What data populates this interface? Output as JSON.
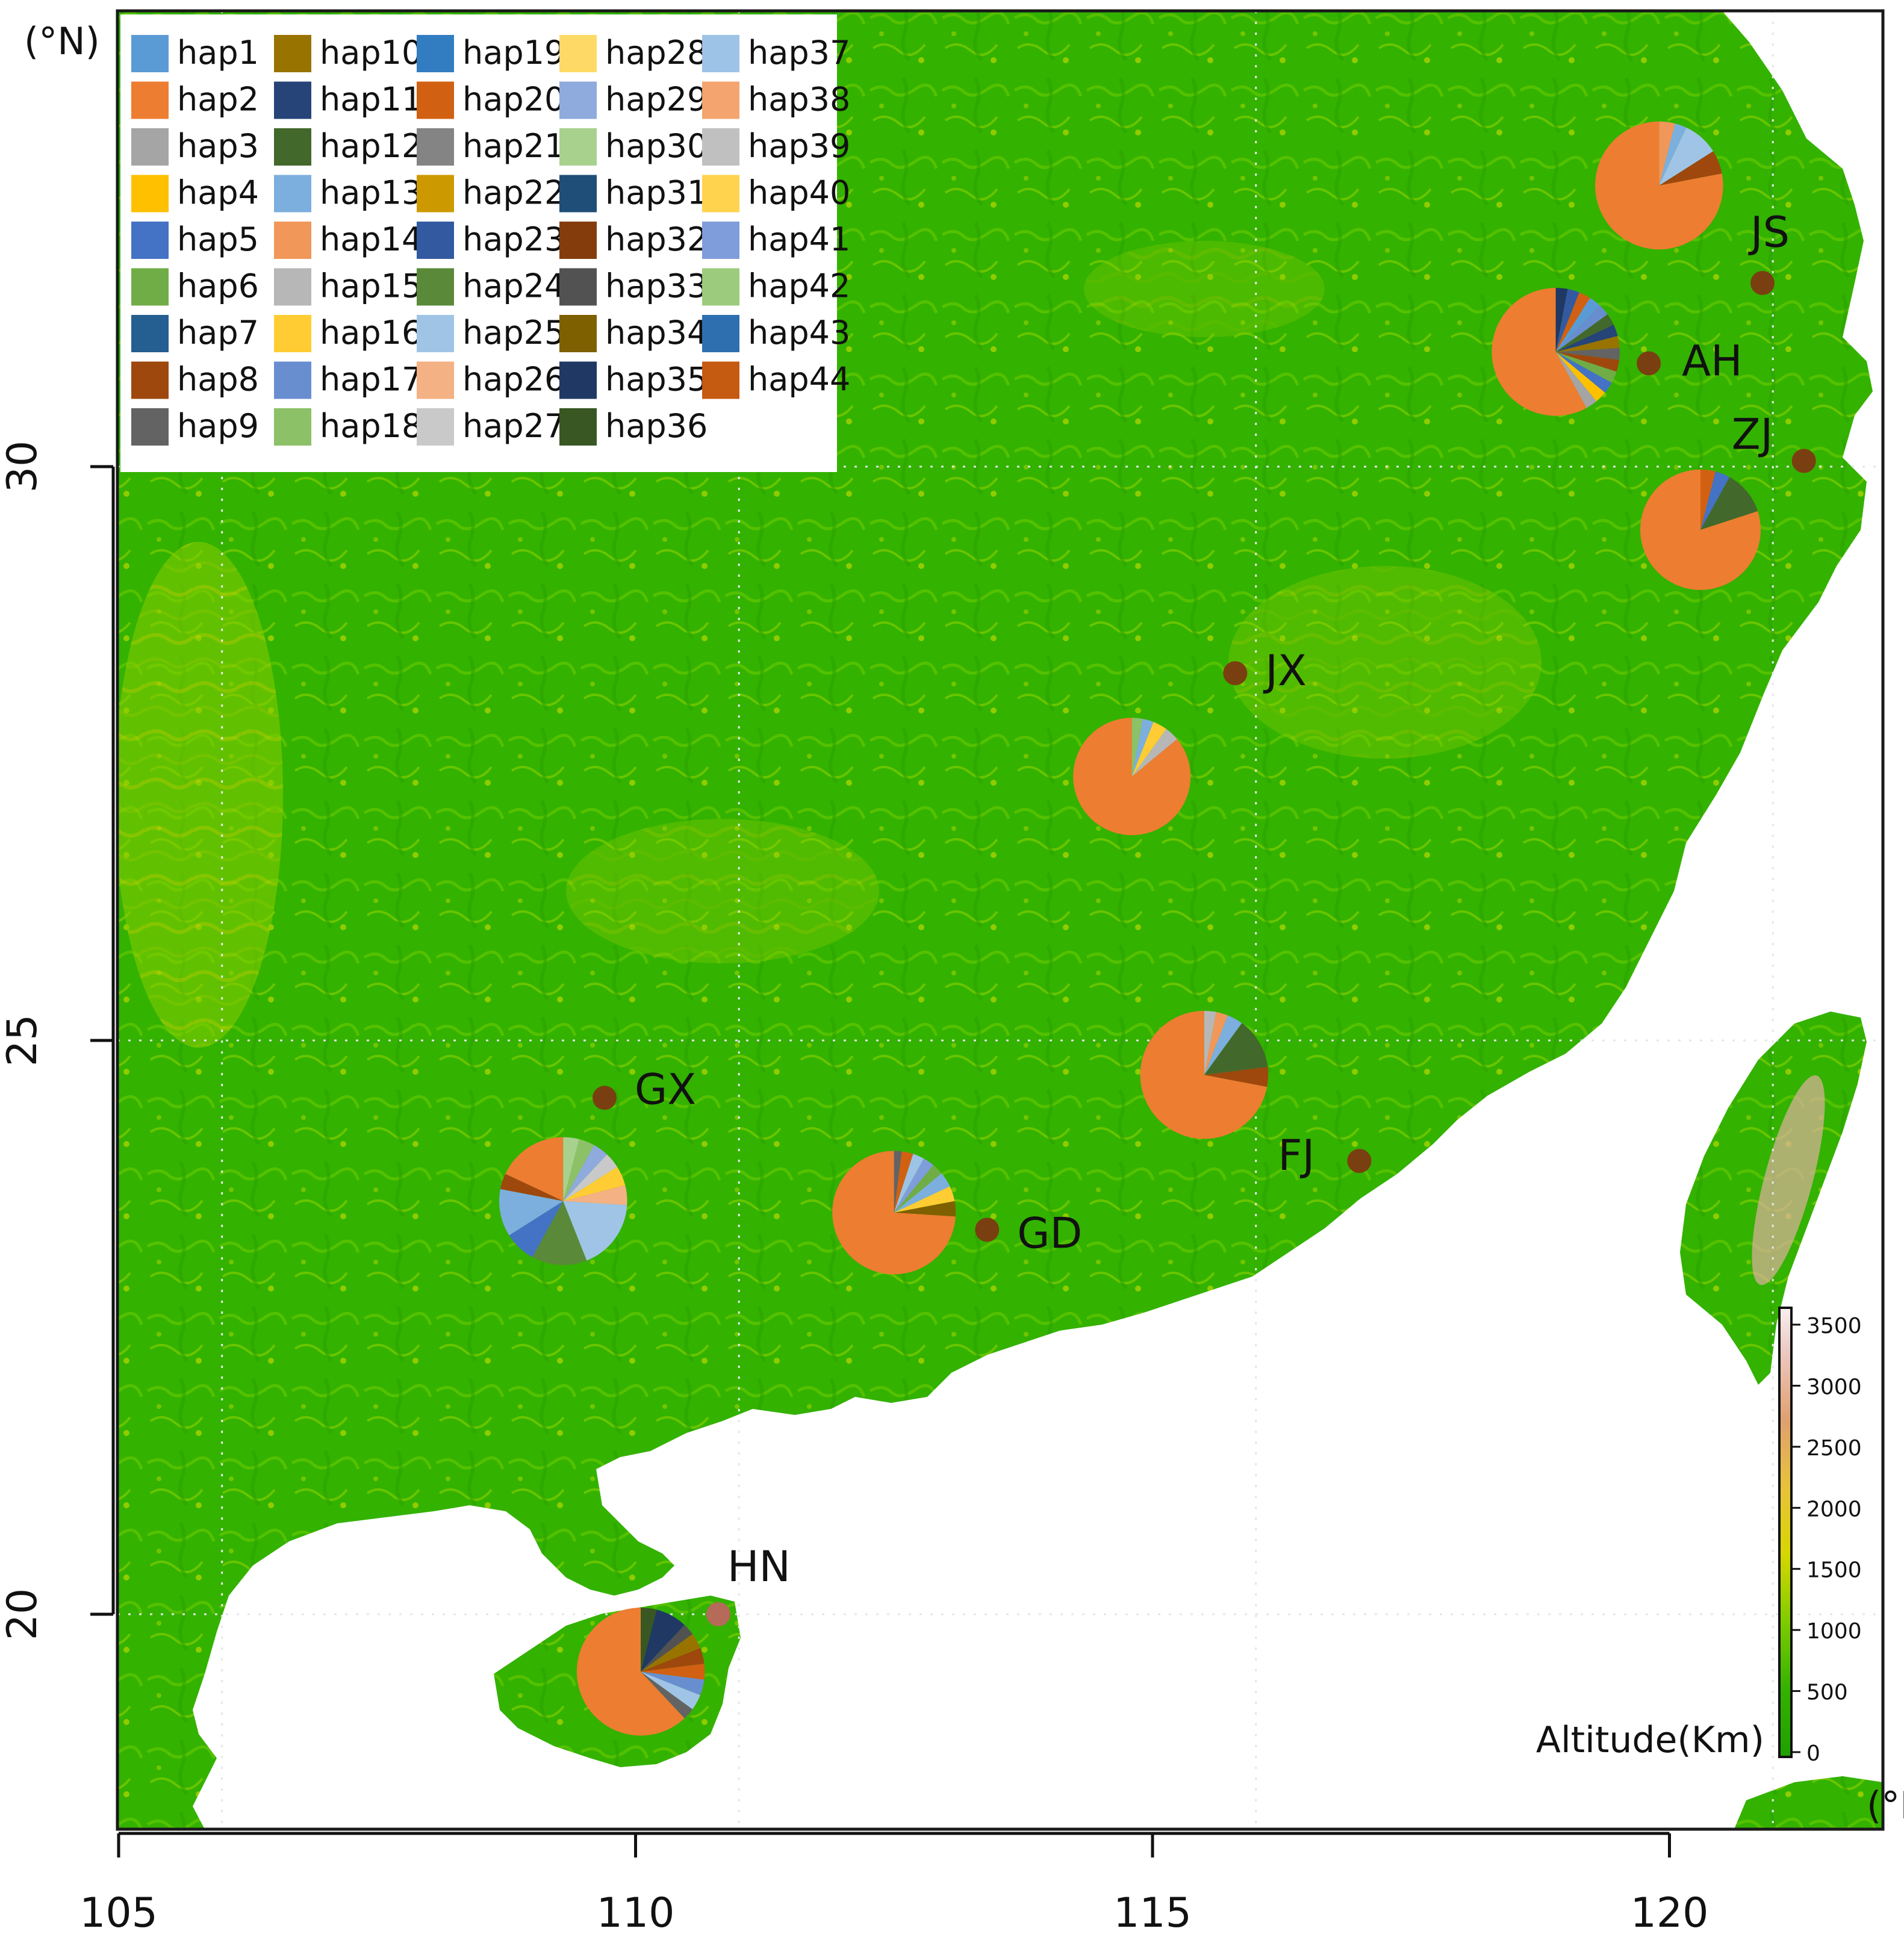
{
  "axes": {
    "x_unit": "(°E)",
    "y_unit": "(°N)",
    "x_ticks": [
      "105",
      "110",
      "115",
      "120"
    ],
    "y_ticks": [
      "30",
      "25",
      "20"
    ]
  },
  "legend": {
    "items": [
      {
        "label": "hap1",
        "color": "#5b9bd5"
      },
      {
        "label": "hap2",
        "color": "#ed7d31"
      },
      {
        "label": "hap3",
        "color": "#a5a5a5"
      },
      {
        "label": "hap4",
        "color": "#ffc000"
      },
      {
        "label": "hap5",
        "color": "#4472c4"
      },
      {
        "label": "hap6",
        "color": "#70ad47"
      },
      {
        "label": "hap7",
        "color": "#255e91"
      },
      {
        "label": "hap8",
        "color": "#9e480e"
      },
      {
        "label": "hap9",
        "color": "#636363"
      },
      {
        "label": "hap10",
        "color": "#997300"
      },
      {
        "label": "hap11",
        "color": "#264478"
      },
      {
        "label": "hap12",
        "color": "#43682b"
      },
      {
        "label": "hap13",
        "color": "#7cafdd"
      },
      {
        "label": "hap14",
        "color": "#f1975a"
      },
      {
        "label": "hap15",
        "color": "#b7b7b7"
      },
      {
        "label": "hap16",
        "color": "#ffcd33"
      },
      {
        "label": "hap17",
        "color": "#698ed0"
      },
      {
        "label": "hap18",
        "color": "#8cc168"
      },
      {
        "label": "hap19",
        "color": "#327dc2"
      },
      {
        "label": "hap20",
        "color": "#d26012"
      },
      {
        "label": "hap21",
        "color": "#848484"
      },
      {
        "label": "hap22",
        "color": "#cc9a00"
      },
      {
        "label": "hap23",
        "color": "#335aa1"
      },
      {
        "label": "hap24",
        "color": "#5a8a39"
      },
      {
        "label": "hap25",
        "color": "#a0c4e6"
      },
      {
        "label": "hap26",
        "color": "#f4b183"
      },
      {
        "label": "hap27",
        "color": "#c9c9c9"
      },
      {
        "label": "hap28",
        "color": "#ffd966"
      },
      {
        "label": "hap29",
        "color": "#8faadc"
      },
      {
        "label": "hap30",
        "color": "#a9d18e"
      },
      {
        "label": "hap31",
        "color": "#1f4e79"
      },
      {
        "label": "hap32",
        "color": "#843c0c"
      },
      {
        "label": "hap33",
        "color": "#525252"
      },
      {
        "label": "hap34",
        "color": "#7f6000"
      },
      {
        "label": "hap35",
        "color": "#203864"
      },
      {
        "label": "hap36",
        "color": "#385723"
      },
      {
        "label": "hap37",
        "color": "#9dc3e6"
      },
      {
        "label": "hap38",
        "color": "#f4a46e"
      },
      {
        "label": "hap39",
        "color": "#c0c0c0"
      },
      {
        "label": "hap40",
        "color": "#ffd34d"
      },
      {
        "label": "hap41",
        "color": "#7f9ddb"
      },
      {
        "label": "hap42",
        "color": "#9ccb7d"
      },
      {
        "label": "hap43",
        "color": "#2e6fb0"
      },
      {
        "label": "hap44",
        "color": "#c55a11"
      }
    ]
  },
  "sites": [
    {
      "id": "JS",
      "label": "JS",
      "lon": 120.9,
      "lat": 31.6,
      "dot_color": "#7a3f10"
    },
    {
      "id": "AH",
      "label": "AH",
      "lon": 119.8,
      "lat": 30.9,
      "dot_color": "#7a3f10"
    },
    {
      "id": "ZJ",
      "label": "ZJ",
      "lon": 121.3,
      "lat": 30.05,
      "dot_color": "#7a3f10"
    },
    {
      "id": "JX",
      "label": "JX",
      "lon": 115.8,
      "lat": 28.2,
      "dot_color": "#7a3f10"
    },
    {
      "id": "GX",
      "label": "GX",
      "lon": 109.7,
      "lat": 24.5,
      "dot_color": "#7a3f10"
    },
    {
      "id": "FJ",
      "label": "FJ",
      "lon": 117.0,
      "lat": 23.95,
      "dot_color": "#7a3f10"
    },
    {
      "id": "GD",
      "label": "GD",
      "lon": 113.4,
      "lat": 23.35,
      "dot_color": "#7a3f10"
    },
    {
      "id": "HN",
      "label": "HN",
      "lon": 110.8,
      "lat": 20.0,
      "dot_color": "#b56a5a"
    }
  ],
  "pies": [
    {
      "site": "JS",
      "lon": 119.9,
      "lat": 32.45,
      "radius_scale": 0.85,
      "slices": [
        {
          "hap": "hap2",
          "value": 78
        },
        {
          "hap": "hap8",
          "value": 6
        },
        {
          "hap": "hap25",
          "value": 9
        },
        {
          "hap": "hap13",
          "value": 3
        },
        {
          "hap": "hap14",
          "value": 4
        }
      ]
    },
    {
      "site": "AH",
      "lon": 118.9,
      "lat": 31.0,
      "radius_scale": 0.85,
      "slices": [
        {
          "hap": "hap2",
          "value": 58
        },
        {
          "hap": "hap3",
          "value": 3
        },
        {
          "hap": "hap4",
          "value": 3
        },
        {
          "hap": "hap5",
          "value": 3
        },
        {
          "hap": "hap6",
          "value": 3
        },
        {
          "hap": "hap8",
          "value": 3
        },
        {
          "hap": "hap9",
          "value": 3
        },
        {
          "hap": "hap10",
          "value": 3
        },
        {
          "hap": "hap11",
          "value": 3
        },
        {
          "hap": "hap12",
          "value": 3
        },
        {
          "hap": "hap17",
          "value": 3
        },
        {
          "hap": "hap1",
          "value": 3
        },
        {
          "hap": "hap20",
          "value": 3
        },
        {
          "hap": "hap23",
          "value": 3
        },
        {
          "hap": "hap35",
          "value": 3
        }
      ]
    },
    {
      "site": "ZJ",
      "lon": 120.3,
      "lat": 29.45,
      "radius_scale": 0.8,
      "slices": [
        {
          "hap": "hap2",
          "value": 80
        },
        {
          "hap": "hap12",
          "value": 12
        },
        {
          "hap": "hap5",
          "value": 4
        },
        {
          "hap": "hap20",
          "value": 4
        }
      ]
    },
    {
      "site": "JX",
      "lon": 114.8,
      "lat": 27.3,
      "radius_scale": 0.78,
      "slices": [
        {
          "hap": "hap2",
          "value": 86
        },
        {
          "hap": "hap15",
          "value": 4
        },
        {
          "hap": "hap16",
          "value": 4
        },
        {
          "hap": "hap13",
          "value": 3
        },
        {
          "hap": "hap18",
          "value": 3
        }
      ]
    },
    {
      "site": "FJ",
      "lon": 115.5,
      "lat": 24.7,
      "radius_scale": 0.85,
      "slices": [
        {
          "hap": "hap2",
          "value": 72
        },
        {
          "hap": "hap8",
          "value": 5
        },
        {
          "hap": "hap12",
          "value": 13
        },
        {
          "hap": "hap13",
          "value": 4
        },
        {
          "hap": "hap14",
          "value": 3
        },
        {
          "hap": "hap15",
          "value": 3
        }
      ]
    },
    {
      "site": "GX",
      "lon": 109.3,
      "lat": 23.6,
      "radius_scale": 0.85,
      "slices": [
        {
          "hap": "hap2",
          "value": 18
        },
        {
          "hap": "hap8",
          "value": 4
        },
        {
          "hap": "hap13",
          "value": 12
        },
        {
          "hap": "hap5",
          "value": 8
        },
        {
          "hap": "hap24",
          "value": 14
        },
        {
          "hap": "hap25",
          "value": 18
        },
        {
          "hap": "hap26",
          "value": 5
        },
        {
          "hap": "hap16",
          "value": 5
        },
        {
          "hap": "hap27",
          "value": 4
        },
        {
          "hap": "hap29",
          "value": 4
        },
        {
          "hap": "hap18",
          "value": 4
        },
        {
          "hap": "hap30",
          "value": 4
        }
      ]
    },
    {
      "site": "GD",
      "lon": 112.5,
      "lat": 23.5,
      "radius_scale": 0.82,
      "slices": [
        {
          "hap": "hap2",
          "value": 74
        },
        {
          "hap": "hap34",
          "value": 4
        },
        {
          "hap": "hap16",
          "value": 4
        },
        {
          "hap": "hap13",
          "value": 4
        },
        {
          "hap": "hap6",
          "value": 3
        },
        {
          "hap": "hap41",
          "value": 3
        },
        {
          "hap": "hap37",
          "value": 3
        },
        {
          "hap": "hap20",
          "value": 3
        },
        {
          "hap": "hap9",
          "value": 2
        }
      ]
    },
    {
      "site": "HN",
      "lon": 110.05,
      "lat": 19.5,
      "radius_scale": 0.85,
      "slices": [
        {
          "hap": "hap2",
          "value": 62
        },
        {
          "hap": "hap9",
          "value": 3
        },
        {
          "hap": "hap25",
          "value": 4
        },
        {
          "hap": "hap17",
          "value": 4
        },
        {
          "hap": "hap20",
          "value": 4
        },
        {
          "hap": "hap8",
          "value": 4
        },
        {
          "hap": "hap10",
          "value": 4
        },
        {
          "hap": "hap33",
          "value": 3
        },
        {
          "hap": "hap35",
          "value": 8
        },
        {
          "hap": "hap36",
          "value": 4
        }
      ]
    }
  ],
  "colorbar": {
    "title": "Altitude(Km)",
    "ticks": [
      "3500",
      "3000",
      "2500",
      "2000",
      "1500",
      "1000",
      "500",
      "0"
    ]
  },
  "colors": {
    "land": "#33b200",
    "sea": "#ffffff",
    "highland_yellow": "#c8d400",
    "frame": "#1a1a1a"
  }
}
